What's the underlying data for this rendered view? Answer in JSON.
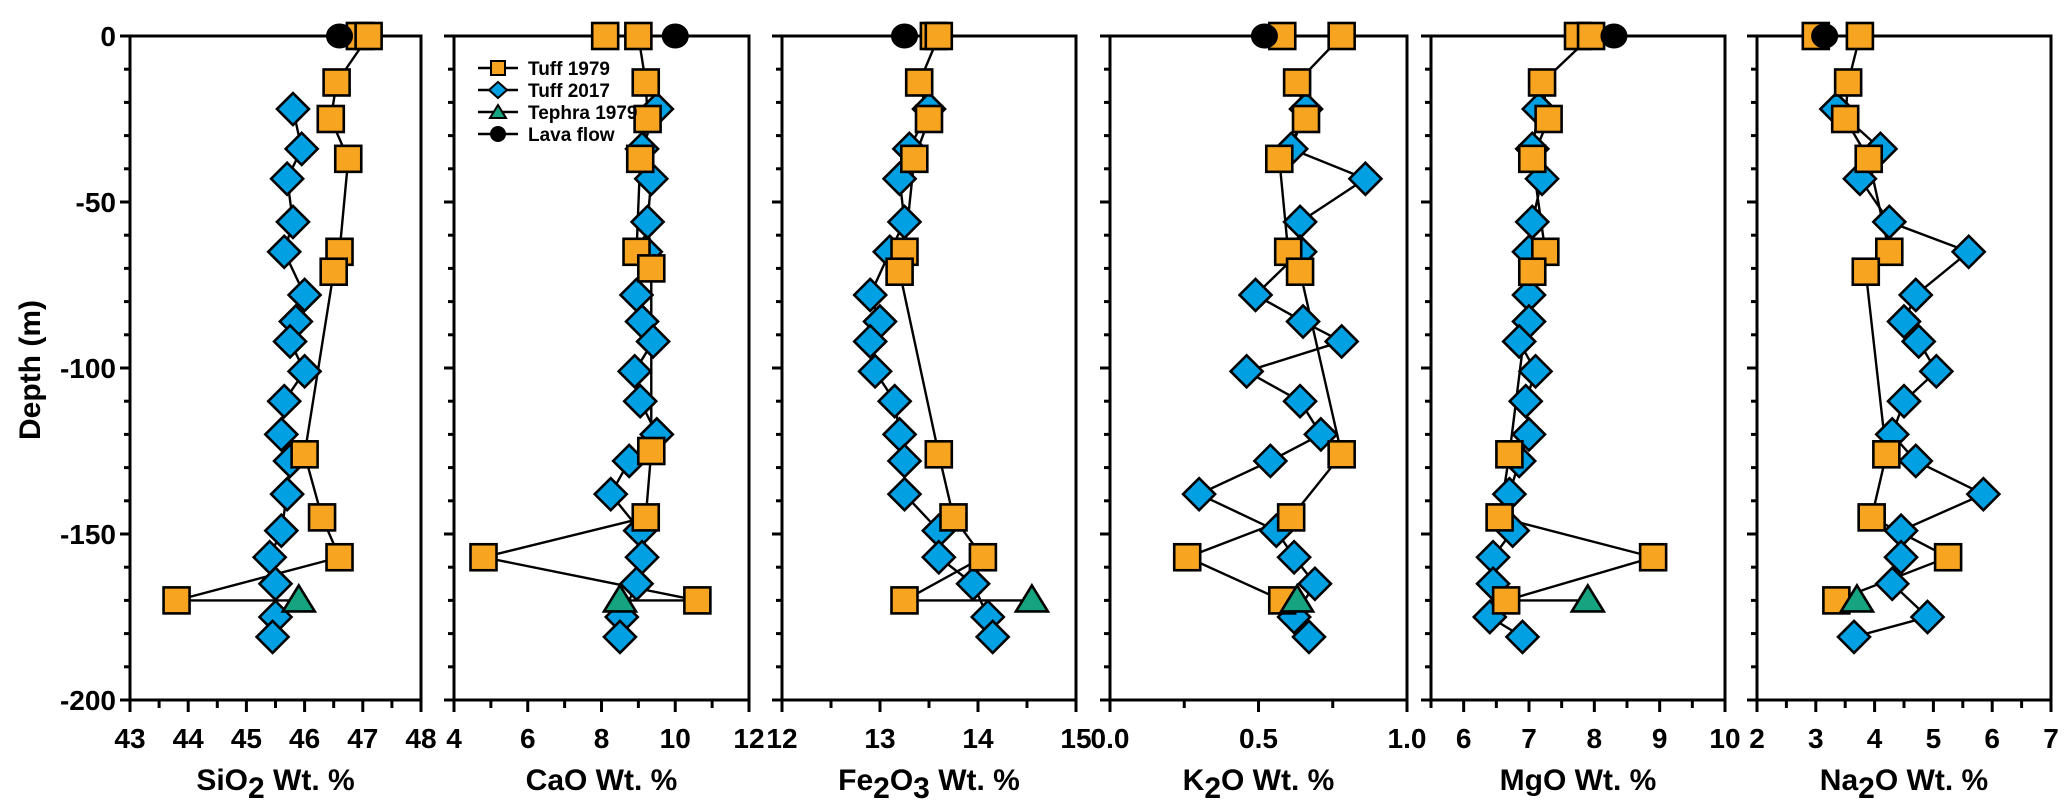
{
  "chart_data": {
    "type": "scatter",
    "ylabel": "Depth (m)",
    "ylim": [
      -200,
      0
    ],
    "yticks": [
      0,
      -50,
      -100,
      -150,
      -200
    ],
    "ytick_labels": [
      "0",
      "-50",
      "-100",
      "-150",
      "-200"
    ],
    "legend": {
      "placement": "inside top-left of CaO panel",
      "entries": [
        {
          "name": "Tuff 1979",
          "marker": "square",
          "color": "#F7A521"
        },
        {
          "name": "Tuff 2017",
          "marker": "diamond",
          "color": "#00A0E3"
        },
        {
          "name": "Tephra 1979",
          "marker": "triangle",
          "color": "#16A37F"
        },
        {
          "name": "Lava flow",
          "marker": "circle",
          "color": "#000000"
        }
      ]
    },
    "panels": [
      {
        "oxide": "SiO2",
        "xlabel_main": "SiO",
        "xlabel_sub": "2",
        "xlabel_tail": "Wt. %",
        "xlim": [
          43,
          48
        ],
        "xticks": [
          43,
          44,
          45,
          46,
          47,
          48
        ],
        "xtick_labels": [
          "43",
          "44",
          "45",
          "46",
          "47",
          "48"
        ],
        "tuff1979": [
          [
            46.95,
            0
          ],
          [
            47.1,
            0
          ],
          [
            46.55,
            -14
          ],
          [
            46.45,
            -25
          ],
          [
            46.75,
            -37
          ],
          [
            46.6,
            -65
          ],
          [
            46.5,
            -71
          ],
          [
            46.0,
            -126
          ],
          [
            46.3,
            -145
          ],
          [
            46.6,
            -157
          ],
          [
            43.8,
            -170
          ]
        ],
        "tuff2017": [
          [
            45.8,
            -22
          ],
          [
            45.95,
            -34
          ],
          [
            45.7,
            -43
          ],
          [
            45.8,
            -56
          ],
          [
            45.65,
            -65
          ],
          [
            46.0,
            -78
          ],
          [
            45.85,
            -86
          ],
          [
            45.75,
            -92
          ],
          [
            46.0,
            -101
          ],
          [
            45.65,
            -110
          ],
          [
            45.6,
            -120
          ],
          [
            45.75,
            -128
          ],
          [
            45.7,
            -138
          ],
          [
            45.6,
            -149
          ],
          [
            45.4,
            -157
          ],
          [
            45.5,
            -165
          ],
          [
            45.5,
            -175
          ],
          [
            45.45,
            -181
          ]
        ],
        "tephra1979": [
          [
            45.9,
            -170
          ]
        ],
        "lava": [
          [
            46.6,
            0
          ]
        ]
      },
      {
        "oxide": "CaO",
        "xlabel_main": "CaO",
        "xlabel_sub": "",
        "xlabel_tail": "Wt. %",
        "xlim": [
          4,
          12
        ],
        "xticks": [
          4,
          6,
          8,
          10,
          12
        ],
        "xtick_labels": [
          "4",
          "6",
          "8",
          "10",
          "12"
        ],
        "tuff1979": [
          [
            8.1,
            0
          ],
          [
            9.0,
            0
          ],
          [
            9.2,
            -14
          ],
          [
            9.25,
            -25
          ],
          [
            9.05,
            -37
          ],
          [
            8.95,
            -65
          ],
          [
            9.35,
            -70
          ],
          [
            9.35,
            -125
          ],
          [
            9.2,
            -145
          ],
          [
            4.8,
            -157
          ],
          [
            10.6,
            -170
          ]
        ],
        "tuff2017": [
          [
            9.5,
            -22
          ],
          [
            9.1,
            -34
          ],
          [
            9.35,
            -43
          ],
          [
            9.25,
            -56
          ],
          [
            9.2,
            -65
          ],
          [
            8.95,
            -78
          ],
          [
            9.1,
            -86
          ],
          [
            9.4,
            -92
          ],
          [
            8.9,
            -101
          ],
          [
            9.05,
            -110
          ],
          [
            9.5,
            -120
          ],
          [
            8.75,
            -128
          ],
          [
            8.25,
            -138
          ],
          [
            9.05,
            -149
          ],
          [
            9.1,
            -157
          ],
          [
            8.95,
            -165
          ],
          [
            8.55,
            -175
          ],
          [
            8.5,
            -181
          ]
        ],
        "tephra1979": [
          [
            8.5,
            -170
          ]
        ],
        "lava": [
          [
            10.0,
            0
          ]
        ]
      },
      {
        "oxide": "Fe2O3",
        "xlabel_main": "Fe",
        "xlabel_sub": "2",
        "xlabel_mid": "O",
        "xlabel_sub2": "3",
        "xlabel_tail": "Wt. %",
        "xlim": [
          12,
          15
        ],
        "xticks": [
          12,
          13,
          14,
          15
        ],
        "xtick_labels": [
          "12",
          "13",
          "14",
          "15"
        ],
        "tuff1979": [
          [
            13.55,
            0
          ],
          [
            13.6,
            0
          ],
          [
            13.4,
            -14
          ],
          [
            13.5,
            -25
          ],
          [
            13.35,
            -37
          ],
          [
            13.25,
            -65
          ],
          [
            13.2,
            -71
          ],
          [
            13.6,
            -126
          ],
          [
            13.75,
            -145
          ],
          [
            14.05,
            -157
          ],
          [
            13.25,
            -170
          ]
        ],
        "tuff2017": [
          [
            13.5,
            -22
          ],
          [
            13.3,
            -34
          ],
          [
            13.2,
            -43
          ],
          [
            13.25,
            -56
          ],
          [
            13.1,
            -65
          ],
          [
            12.9,
            -78
          ],
          [
            13.0,
            -86
          ],
          [
            12.9,
            -92
          ],
          [
            12.95,
            -101
          ],
          [
            13.15,
            -110
          ],
          [
            13.2,
            -120
          ],
          [
            13.25,
            -128
          ],
          [
            13.25,
            -138
          ],
          [
            13.6,
            -149
          ],
          [
            13.6,
            -157
          ],
          [
            13.95,
            -165
          ],
          [
            14.1,
            -175
          ],
          [
            14.15,
            -181
          ]
        ],
        "tephra1979": [
          [
            14.55,
            -170
          ]
        ],
        "lava": [
          [
            13.25,
            0
          ]
        ]
      },
      {
        "oxide": "K2O",
        "xlabel_main": "K",
        "xlabel_sub": "2",
        "xlabel_mid": "O",
        "xlabel_tail": "Wt. %",
        "xlim": [
          0,
          1
        ],
        "xticks": [
          0,
          0.5,
          1.0
        ],
        "xtick_labels": [
          "0.0",
          "0.5",
          "1.0"
        ],
        "tuff1979": [
          [
            0.58,
            0
          ],
          [
            0.78,
            0
          ],
          [
            0.63,
            -14
          ],
          [
            0.66,
            -25
          ],
          [
            0.57,
            -37
          ],
          [
            0.6,
            -65
          ],
          [
            0.64,
            -71
          ],
          [
            0.78,
            -126
          ],
          [
            0.61,
            -145
          ],
          [
            0.26,
            -157
          ],
          [
            0.58,
            -170
          ]
        ],
        "tuff2017": [
          [
            0.66,
            -22
          ],
          [
            0.61,
            -34
          ],
          [
            0.86,
            -43
          ],
          [
            0.64,
            -56
          ],
          [
            0.64,
            -65
          ],
          [
            0.49,
            -78
          ],
          [
            0.65,
            -86
          ],
          [
            0.78,
            -92
          ],
          [
            0.46,
            -101
          ],
          [
            0.64,
            -110
          ],
          [
            0.71,
            -120
          ],
          [
            0.54,
            -128
          ],
          [
            0.3,
            -138
          ],
          [
            0.56,
            -149
          ],
          [
            0.62,
            -157
          ],
          [
            0.69,
            -165
          ],
          [
            0.62,
            -175
          ],
          [
            0.67,
            -181
          ]
        ],
        "tephra1979": [
          [
            0.63,
            -170
          ]
        ],
        "lava": [
          [
            0.52,
            0
          ]
        ]
      },
      {
        "oxide": "MgO",
        "xlabel_main": "MgO",
        "xlabel_sub": "",
        "xlabel_tail": "Wt. %",
        "xlim": [
          5.5,
          10
        ],
        "xticks": [
          6,
          7,
          8,
          9,
          10
        ],
        "xtick_labels": [
          "6",
          "7",
          "8",
          "9",
          "10"
        ],
        "tuff1979": [
          [
            7.75,
            0
          ],
          [
            7.95,
            0
          ],
          [
            7.2,
            -14
          ],
          [
            7.3,
            -25
          ],
          [
            7.05,
            -37
          ],
          [
            7.25,
            -65
          ],
          [
            7.05,
            -71
          ],
          [
            6.7,
            -126
          ],
          [
            6.55,
            -145
          ],
          [
            8.9,
            -157
          ],
          [
            6.65,
            -170
          ]
        ],
        "tuff2017": [
          [
            7.15,
            -22
          ],
          [
            7.05,
            -34
          ],
          [
            7.2,
            -43
          ],
          [
            7.05,
            -56
          ],
          [
            7.0,
            -65
          ],
          [
            7.0,
            -78
          ],
          [
            7.0,
            -86
          ],
          [
            6.85,
            -92
          ],
          [
            7.1,
            -101
          ],
          [
            6.95,
            -110
          ],
          [
            7.0,
            -120
          ],
          [
            6.85,
            -128
          ],
          [
            6.7,
            -138
          ],
          [
            6.75,
            -149
          ],
          [
            6.45,
            -157
          ],
          [
            6.45,
            -165
          ],
          [
            6.4,
            -175
          ],
          [
            6.9,
            -181
          ]
        ],
        "tephra1979": [
          [
            7.9,
            -170
          ]
        ],
        "lava": [
          [
            8.3,
            0
          ]
        ]
      },
      {
        "oxide": "Na2O",
        "xlabel_main": "Na",
        "xlabel_sub": "2",
        "xlabel_mid": "O",
        "xlabel_tail": "Wt. %",
        "xlim": [
          2,
          7
        ],
        "xticks": [
          2,
          3,
          4,
          5,
          6,
          7
        ],
        "xtick_labels": [
          "2",
          "3",
          "4",
          "5",
          "6",
          "7"
        ],
        "tuff1979": [
          [
            3.0,
            0
          ],
          [
            3.75,
            0
          ],
          [
            3.55,
            -14
          ],
          [
            3.5,
            -25
          ],
          [
            3.9,
            -37
          ],
          [
            4.25,
            -65
          ],
          [
            3.85,
            -71
          ],
          [
            4.2,
            -126
          ],
          [
            3.95,
            -145
          ],
          [
            5.25,
            -157
          ],
          [
            3.35,
            -170
          ]
        ],
        "tuff2017": [
          [
            3.35,
            -22
          ],
          [
            4.1,
            -34
          ],
          [
            3.75,
            -43
          ],
          [
            4.25,
            -56
          ],
          [
            5.6,
            -65
          ],
          [
            4.7,
            -78
          ],
          [
            4.5,
            -86
          ],
          [
            4.75,
            -92
          ],
          [
            5.05,
            -101
          ],
          [
            4.5,
            -110
          ],
          [
            4.3,
            -120
          ],
          [
            4.7,
            -128
          ],
          [
            5.85,
            -138
          ],
          [
            4.45,
            -149
          ],
          [
            4.45,
            -157
          ],
          [
            4.3,
            -165
          ],
          [
            4.9,
            -175
          ],
          [
            3.65,
            -181
          ]
        ],
        "tephra1979": [
          [
            3.7,
            -170
          ]
        ],
        "lava": [
          [
            3.15,
            0
          ]
        ]
      }
    ]
  }
}
